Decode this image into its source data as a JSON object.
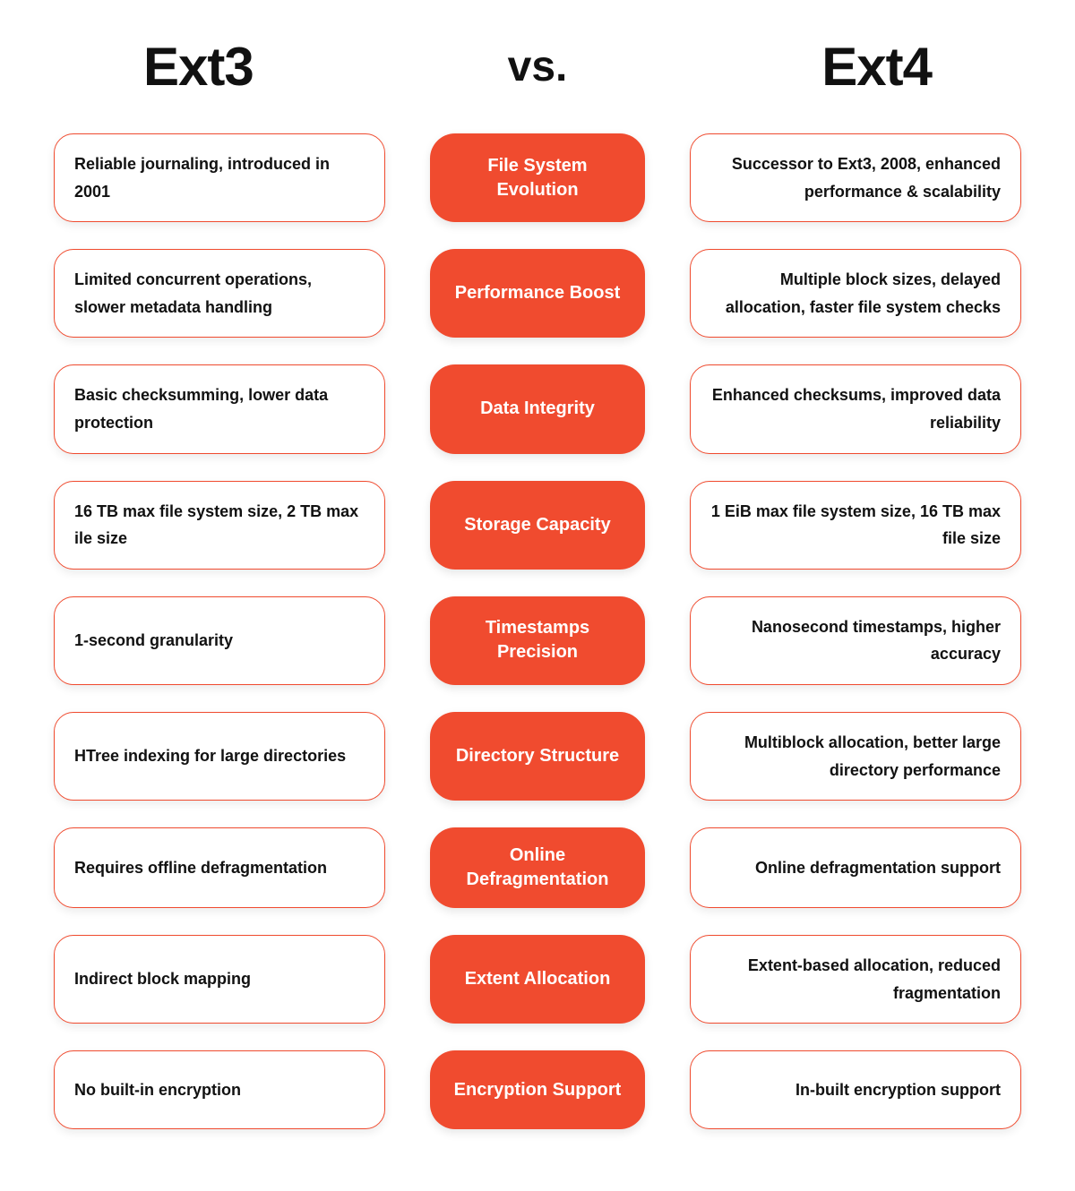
{
  "header": {
    "left": "Ext3",
    "vs": "vs.",
    "right": "Ext4"
  },
  "styles": {
    "accent_color": "#f04b2f",
    "background_color": "#ffffff",
    "text_color": "#111111",
    "center_text_color": "#ffffff",
    "border_radius_cell": 22,
    "border_radius_center": 28,
    "header_fontsize": 60,
    "vs_fontsize": 48,
    "cell_fontsize": 18,
    "center_fontsize": 20,
    "row_gap": 30
  },
  "rows": [
    {
      "left": "Reliable journaling, introduced in 2001",
      "center": "File System Evolution",
      "right": "Successor to Ext3, 2008, enhanced performance & scalability"
    },
    {
      "left": "Limited concurrent operations, slower metadata handling",
      "center": "Performance Boost",
      "right": "Multiple block sizes, delayed allocation, faster file system checks"
    },
    {
      "left": "Basic checksumming, lower data protection",
      "center": "Data Integrity",
      "right": "Enhanced checksums, improved data reliability"
    },
    {
      "left": "16 TB max file system size, 2 TB max ile size",
      "center": "Storage Capacity",
      "right": "1 EiB max file system size, 16 TB max file size"
    },
    {
      "left": "1-second granularity",
      "center": "Timestamps Precision",
      "right": "Nanosecond timestamps, higher accuracy"
    },
    {
      "left": "HTree indexing for large directories",
      "center": "Directory Structure",
      "right": "Multiblock allocation, better large directory performance"
    },
    {
      "left": "Requires offline defragmentation",
      "center": "Online Defragmentation",
      "right": "Online defragmentation support"
    },
    {
      "left": "Indirect block mapping",
      "center": "Extent Allocation",
      "right": "Extent-based allocation, reduced fragmentation"
    },
    {
      "left": "No built-in encryption",
      "center": "Encryption Support",
      "right": "In-built encryption support"
    }
  ]
}
